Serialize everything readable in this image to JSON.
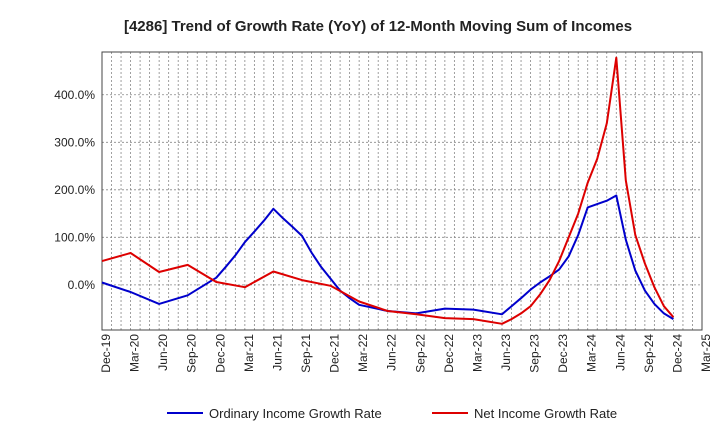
{
  "chart_data": {
    "type": "line",
    "title": "[4286]  Trend of Growth Rate (YoY) of 12-Month Moving Sum of Incomes",
    "xlabel": "",
    "ylabel": "",
    "ylim": [
      -95,
      490
    ],
    "y_ticks": [
      0,
      100,
      200,
      300,
      400
    ],
    "y_tick_labels": [
      "0.0%",
      "100.0%",
      "200.0%",
      "300.0%",
      "400.0%"
    ],
    "x_tick_labels": [
      "Dec-19",
      "Mar-20",
      "Jun-20",
      "Sep-20",
      "Dec-20",
      "Mar-21",
      "Jun-21",
      "Sep-21",
      "Dec-21",
      "Mar-22",
      "Jun-22",
      "Sep-22",
      "Dec-22",
      "Mar-23",
      "Jun-23",
      "Sep-23",
      "Dec-23",
      "Mar-24",
      "Jun-24",
      "Sep-24",
      "Dec-24",
      "Mar-25"
    ],
    "x_months": [
      "Dec-19",
      "Jan-20",
      "Feb-20",
      "Mar-20",
      "Apr-20",
      "May-20",
      "Jun-20",
      "Jul-20",
      "Aug-20",
      "Sep-20",
      "Oct-20",
      "Nov-20",
      "Dec-20",
      "Jan-21",
      "Feb-21",
      "Mar-21",
      "Apr-21",
      "May-21",
      "Jun-21",
      "Jul-21",
      "Aug-21",
      "Sep-21",
      "Oct-21",
      "Nov-21",
      "Dec-21",
      "Jan-22",
      "Feb-22",
      "Mar-22",
      "Apr-22",
      "May-22",
      "Jun-22",
      "Jul-22",
      "Aug-22",
      "Sep-22",
      "Oct-22",
      "Nov-22",
      "Dec-22",
      "Jan-23",
      "Feb-23",
      "Mar-23",
      "Apr-23",
      "May-23",
      "Jun-23",
      "Jul-23",
      "Aug-23",
      "Sep-23",
      "Oct-23",
      "Nov-23",
      "Dec-23",
      "Jan-24",
      "Feb-24",
      "Mar-24",
      "Apr-24",
      "May-24",
      "Jun-24",
      "Jul-24",
      "Aug-24",
      "Sep-24",
      "Oct-24",
      "Nov-24",
      "Dec-24",
      "Jan-25",
      "Feb-25",
      "Mar-25"
    ],
    "grid": true,
    "legend_position": "bottom",
    "series": [
      {
        "name": "Ordinary Income Growth Rate",
        "color": "#0000cc",
        "points": [
          [
            "Dec-19",
            5
          ],
          [
            "Mar-20",
            -15
          ],
          [
            "Jun-20",
            -40
          ],
          [
            "Sep-20",
            -22
          ],
          [
            "Dec-20",
            15
          ],
          [
            "Jan-21",
            38
          ],
          [
            "Feb-21",
            62
          ],
          [
            "Mar-21",
            90
          ],
          [
            "Apr-21",
            112
          ],
          [
            "May-21",
            135
          ],
          [
            "Jun-21",
            160
          ],
          [
            "Jul-21",
            140
          ],
          [
            "Aug-21",
            122
          ],
          [
            "Sep-21",
            103
          ],
          [
            "Oct-21",
            68
          ],
          [
            "Nov-21",
            38
          ],
          [
            "Dec-21",
            13
          ],
          [
            "Jan-22",
            -12
          ],
          [
            "Feb-22",
            -28
          ],
          [
            "Mar-22",
            -42
          ],
          [
            "Jun-22",
            -55
          ],
          [
            "Sep-22",
            -60
          ],
          [
            "Dec-22",
            -50
          ],
          [
            "Mar-23",
            -52
          ],
          [
            "Jun-23",
            -62
          ],
          [
            "Jul-23",
            -45
          ],
          [
            "Aug-23",
            -28
          ],
          [
            "Sep-23",
            -10
          ],
          [
            "Oct-23",
            5
          ],
          [
            "Nov-23",
            18
          ],
          [
            "Dec-23",
            32
          ],
          [
            "Jan-24",
            60
          ],
          [
            "Feb-24",
            105
          ],
          [
            "Mar-24",
            163
          ],
          [
            "Apr-24",
            170
          ],
          [
            "May-24",
            177
          ],
          [
            "Jun-24",
            188
          ],
          [
            "Jul-24",
            95
          ],
          [
            "Aug-24",
            30
          ],
          [
            "Sep-24",
            -12
          ],
          [
            "Oct-24",
            -40
          ],
          [
            "Nov-24",
            -60
          ],
          [
            "Dec-24",
            -72
          ]
        ]
      },
      {
        "name": "Net Income Growth Rate",
        "color": "#dd0000",
        "points": [
          [
            "Dec-19",
            50
          ],
          [
            "Mar-20",
            67
          ],
          [
            "Jun-20",
            27
          ],
          [
            "Sep-20",
            42
          ],
          [
            "Dec-20",
            6
          ],
          [
            "Mar-21",
            -5
          ],
          [
            "Jun-21",
            28
          ],
          [
            "Sep-21",
            10
          ],
          [
            "Dec-21",
            -2
          ],
          [
            "Mar-22",
            -35
          ],
          [
            "Jun-22",
            -55
          ],
          [
            "Sep-22",
            -62
          ],
          [
            "Dec-22",
            -70
          ],
          [
            "Mar-23",
            -72
          ],
          [
            "Jun-23",
            -82
          ],
          [
            "Jul-23",
            -72
          ],
          [
            "Aug-23",
            -60
          ],
          [
            "Sep-23",
            -45
          ],
          [
            "Oct-23",
            -20
          ],
          [
            "Nov-23",
            10
          ],
          [
            "Dec-23",
            50
          ],
          [
            "Jan-24",
            100
          ],
          [
            "Feb-24",
            150
          ],
          [
            "Mar-24",
            215
          ],
          [
            "Apr-24",
            265
          ],
          [
            "May-24",
            340
          ],
          [
            "Jun-24",
            478
          ],
          [
            "Jul-24",
            220
          ],
          [
            "Aug-24",
            105
          ],
          [
            "Sep-24",
            45
          ],
          [
            "Oct-24",
            -5
          ],
          [
            "Nov-24",
            -45
          ],
          [
            "Dec-24",
            -68
          ]
        ]
      }
    ]
  }
}
